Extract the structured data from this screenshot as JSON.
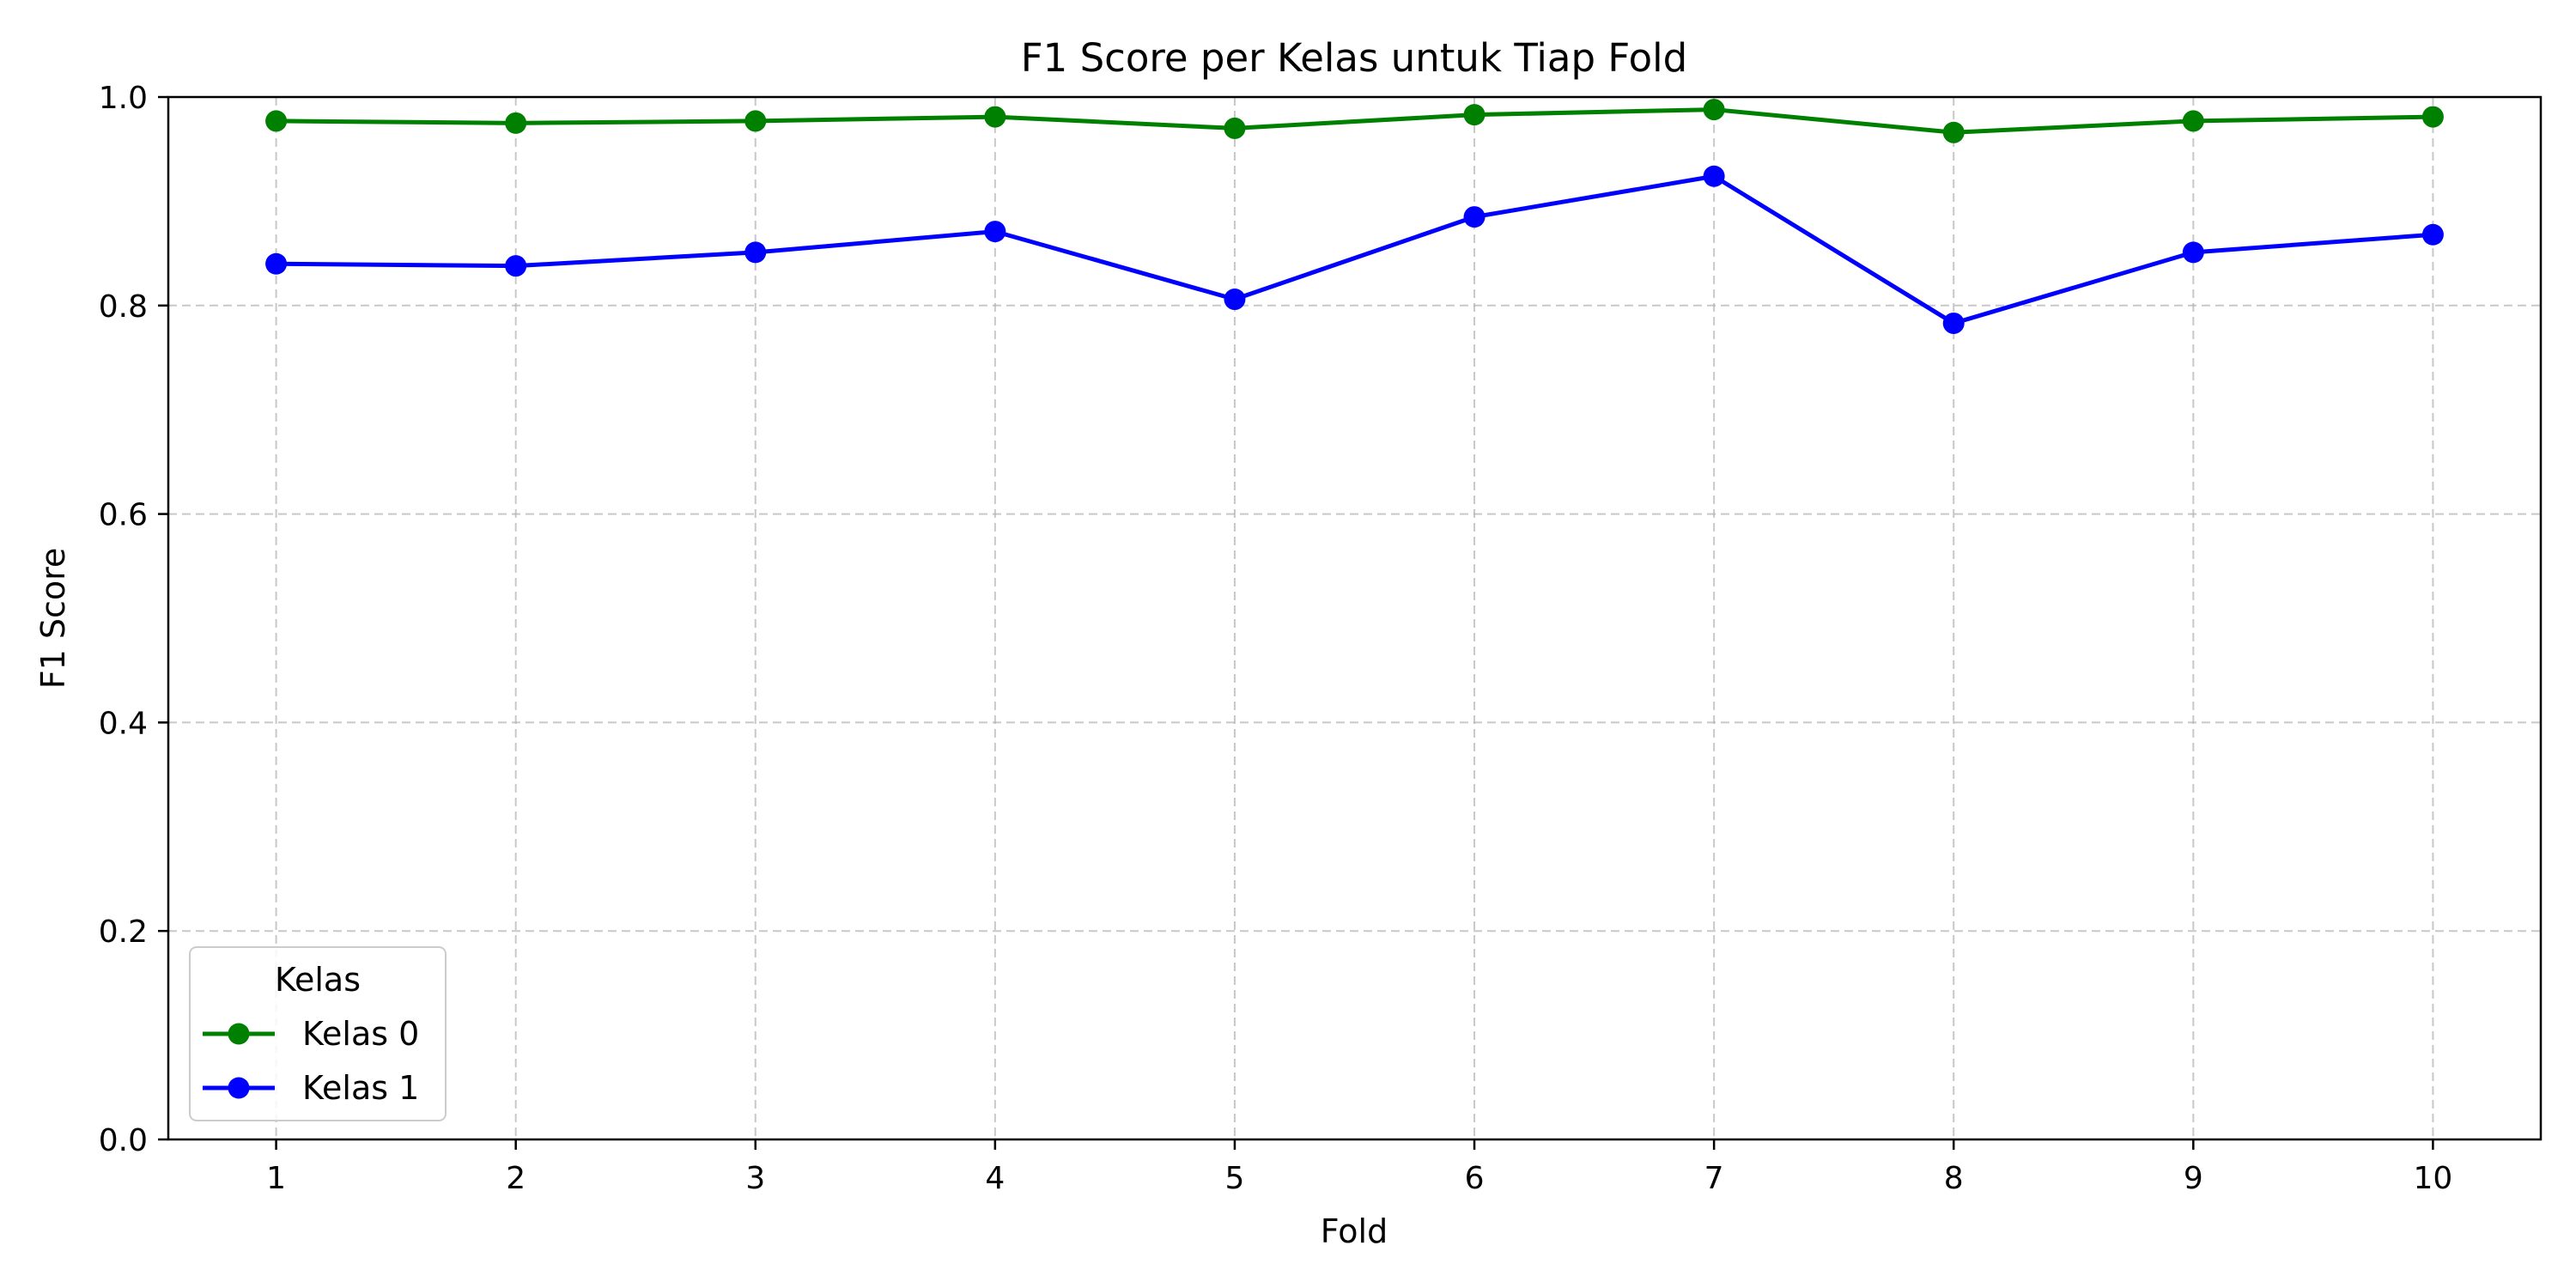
{
  "chart_data": {
    "type": "line",
    "title": "F1 Score per Kelas untuk Tiap Fold",
    "xlabel": "Fold",
    "ylabel": "F1 Score",
    "x": [
      1,
      2,
      3,
      4,
      5,
      6,
      7,
      8,
      9,
      10
    ],
    "xlim": [
      0.55,
      10.45
    ],
    "ylim": [
      0.0,
      1.0
    ],
    "yticks": [
      0.0,
      0.2,
      0.4,
      0.6,
      0.8,
      1.0
    ],
    "ytick_labels": [
      "0.0",
      "0.2",
      "0.4",
      "0.6",
      "0.8",
      "1.0"
    ],
    "xtick_labels": [
      "1",
      "2",
      "3",
      "4",
      "5",
      "6",
      "7",
      "8",
      "9",
      "10"
    ],
    "grid": true,
    "legend": {
      "title": "Kelas",
      "position": "lower-left"
    },
    "series": [
      {
        "name": "Kelas 0",
        "color": "#008000",
        "marker": "circle",
        "values": [
          0.977,
          0.975,
          0.977,
          0.981,
          0.97,
          0.983,
          0.988,
          0.966,
          0.977,
          0.981
        ]
      },
      {
        "name": "Kelas 1",
        "color": "#0000ff",
        "marker": "circle",
        "values": [
          0.84,
          0.838,
          0.851,
          0.871,
          0.806,
          0.885,
          0.924,
          0.783,
          0.851,
          0.868
        ]
      }
    ]
  }
}
